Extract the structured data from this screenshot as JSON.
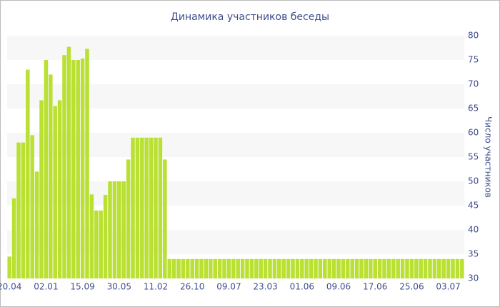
{
  "chart_data": {
    "type": "bar",
    "title": "Динамика участников беседы",
    "y_axis_label": "Число участников",
    "color": "#b9e032",
    "grid": true,
    "y_axis_side": "right",
    "categories": [
      "20.04",
      null,
      null,
      null,
      null,
      null,
      null,
      null,
      "02.01",
      null,
      null,
      null,
      null,
      null,
      null,
      null,
      "15.09",
      null,
      null,
      null,
      null,
      null,
      null,
      null,
      "30.05",
      null,
      null,
      null,
      null,
      null,
      null,
      null,
      "11.02",
      null,
      null,
      null,
      null,
      null,
      null,
      null,
      "26.10",
      null,
      null,
      null,
      null,
      null,
      null,
      null,
      "09.07",
      null,
      null,
      null,
      null,
      null,
      null,
      null,
      "23.03",
      null,
      null,
      null,
      null,
      null,
      null,
      null,
      "01.06",
      null,
      null,
      null,
      null,
      null,
      null,
      null,
      "09.06",
      null,
      null,
      null,
      null,
      null,
      null,
      null,
      "17.06",
      null,
      null,
      null,
      null,
      null,
      null,
      null,
      "25.06",
      null,
      null,
      null,
      null,
      null,
      null,
      null,
      "03.07",
      null,
      null,
      null
    ],
    "values": [
      34.5,
      46.5,
      58,
      58,
      73,
      59.5,
      52,
      66.7,
      75,
      72,
      65.5,
      66.7,
      76,
      77.7,
      75,
      75,
      75.3,
      77.3,
      47.3,
      44,
      44,
      47.2,
      50,
      50,
      50,
      50,
      54.5,
      59,
      59,
      59,
      59,
      59,
      59,
      59,
      54.5,
      34,
      34,
      34,
      34,
      34,
      34,
      34,
      34,
      34,
      34,
      34,
      34,
      34,
      34,
      34,
      34,
      34,
      34,
      34,
      34,
      34,
      34,
      34,
      34,
      34,
      34,
      34,
      34,
      34,
      34,
      34,
      34,
      34,
      34,
      34,
      34,
      34,
      34,
      34,
      34,
      34,
      34,
      34,
      34,
      34,
      34,
      34,
      34,
      34,
      34,
      34,
      34,
      34,
      34,
      34,
      34,
      34,
      34,
      34,
      34,
      34,
      34,
      34,
      34,
      34
    ],
    "ylim": [
      30,
      80
    ],
    "yticks": [
      30,
      35,
      40,
      45,
      50,
      55,
      60,
      65,
      70,
      75,
      80
    ]
  }
}
